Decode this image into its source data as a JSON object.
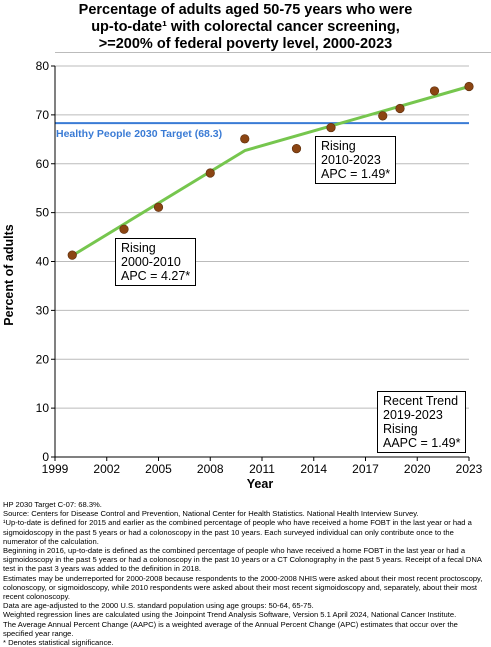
{
  "title_lines": [
    "Percentage of adults aged 50-75 years who were",
    "up-to-date¹ with colorectal cancer screening,",
    ">=200% of federal poverty level,  2000-2023"
  ],
  "chart_data": {
    "type": "line",
    "xlabel": "Year",
    "ylabel": "Percent of adults",
    "xlim": [
      1999,
      2023
    ],
    "ylim": [
      0,
      80
    ],
    "x_ticks": [
      1999,
      2002,
      2005,
      2008,
      2011,
      2014,
      2017,
      2020,
      2023
    ],
    "y_ticks": [
      0,
      10,
      20,
      30,
      40,
      50,
      60,
      70,
      80
    ],
    "grid": "horizontal",
    "series": [
      {
        "type": "scatter",
        "color": "#8B4513",
        "x": [
          2000,
          2003,
          2005,
          2008,
          2010,
          2013,
          2015,
          2018,
          2019,
          2021,
          2023
        ],
        "y": [
          41.3,
          46.6,
          51.1,
          58.1,
          65.1,
          63.1,
          67.4,
          69.8,
          71.3,
          74.9,
          75.8
        ]
      },
      {
        "type": "line",
        "color": "#76C64E",
        "x": [
          2000,
          2010,
          2023
        ],
        "y": [
          41.2,
          62.7,
          75.8
        ]
      }
    ],
    "target": {
      "label": "Healthy People 2030 Target (68.3)",
      "value": 68.3,
      "color": "#3A7BD5"
    },
    "annotations": [
      {
        "lines": [
          "Rising",
          "2000-2010",
          "APC =  4.27*"
        ]
      },
      {
        "lines": [
          "Rising",
          "2010-2023",
          "APC =  1.49*"
        ]
      },
      {
        "lines": [
          "Recent Trend",
          "2019-2023",
          "Rising",
          "AAPC =  1.49*"
        ]
      }
    ]
  },
  "footnotes": [
    "HP 2030 Target C-07: 68.3%.",
    "Source: Centers for Disease Control and Prevention, National Center for Health Statistics. National Health Interview Survey.",
    "¹Up-to-date is defined for 2015 and earlier as the combined percentage of people who have received a home FOBT in the last year or had a sigmoidoscopy in the past 5 years or had a colonoscopy in the past 10 years. Each surveyed individual can only contribute once to the numerator of the calculation.",
    "Beginning in 2016, up-to-date is defined as the combined percentage of people who have received a home FOBT in the last year or had a sigmoidoscopy in the past 5 years or had a colonoscopy in the past 10 years or a CT Colonography in the past 5 years. Receipt of a fecal DNA test in the past 3 years was added to the definition in 2018.",
    "Estimates may be underreported for 2000-2008 because respondents to the 2000-2008 NHIS were asked about their most recent proctoscopy, colonoscopy, or sigmoidoscopy, while 2010 respondents were asked about their most recent sigmoidoscopy and, separately, about their most recent colonoscopy.",
    "Data are age-adjusted to the 2000 U.S. standard population using age groups: 50-64, 65-75.",
    "Weighted regression lines are calculated using the Joinpoint Trend Analysis Software, Version 5.1 April 2024, National Cancer Institute.",
    "The Average Annual Percent Change (AAPC) is a weighted average of the Annual Percent Change (APC) estimates that occur over the specified year range.",
    "* Denotes statistical significance."
  ]
}
